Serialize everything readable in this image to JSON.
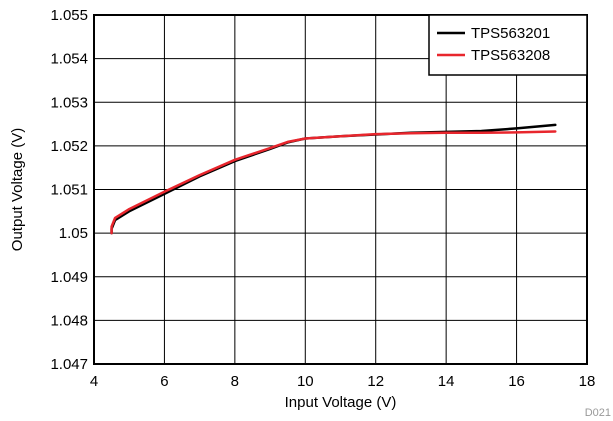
{
  "chart_data": {
    "type": "line",
    "title": "",
    "xlabel": "Input Voltage (V)",
    "ylabel": "Output Voltage (V)",
    "xlim": [
      4,
      18
    ],
    "ylim": [
      1.047,
      1.055
    ],
    "xticks": [
      4,
      6,
      8,
      10,
      12,
      14,
      16,
      18
    ],
    "xtick_labels": [
      "4",
      "6",
      "8",
      "10",
      "12",
      "14",
      "16",
      "18"
    ],
    "yticks": [
      1.047,
      1.048,
      1.049,
      1.05,
      1.051,
      1.052,
      1.053,
      1.054,
      1.055
    ],
    "ytick_labels": [
      "1.047",
      "1.048",
      "1.049",
      "1.05",
      "1.051",
      "1.052",
      "1.053",
      "1.054",
      "1.055"
    ],
    "grid": true,
    "legend_position": "top-right",
    "footnote": "D021",
    "series": [
      {
        "name": "TPS563201",
        "color": "#000000",
        "x": [
          4.5,
          4.5,
          4.6,
          5,
          6,
          7,
          8,
          9,
          9.5,
          10,
          11,
          12,
          13,
          14,
          15,
          16,
          17.1
        ],
        "y": [
          1.05,
          1.0501,
          1.0503,
          1.0505,
          1.0509,
          1.0513,
          1.05165,
          1.05193,
          1.05208,
          1.05217,
          1.05222,
          1.05226,
          1.0523,
          1.05232,
          1.05234,
          1.0524,
          1.05248
        ]
      },
      {
        "name": "TPS563208",
        "color": "#e8262d",
        "x": [
          4.5,
          4.5,
          4.6,
          5,
          6,
          7,
          8,
          9,
          9.5,
          10,
          11,
          12,
          13,
          14,
          15,
          16,
          17.1
        ],
        "y": [
          1.05,
          1.05015,
          1.05035,
          1.05055,
          1.05095,
          1.05133,
          1.05168,
          1.05195,
          1.05209,
          1.05217,
          1.05222,
          1.05227,
          1.05229,
          1.0523,
          1.0523,
          1.05231,
          1.05233
        ]
      }
    ]
  }
}
